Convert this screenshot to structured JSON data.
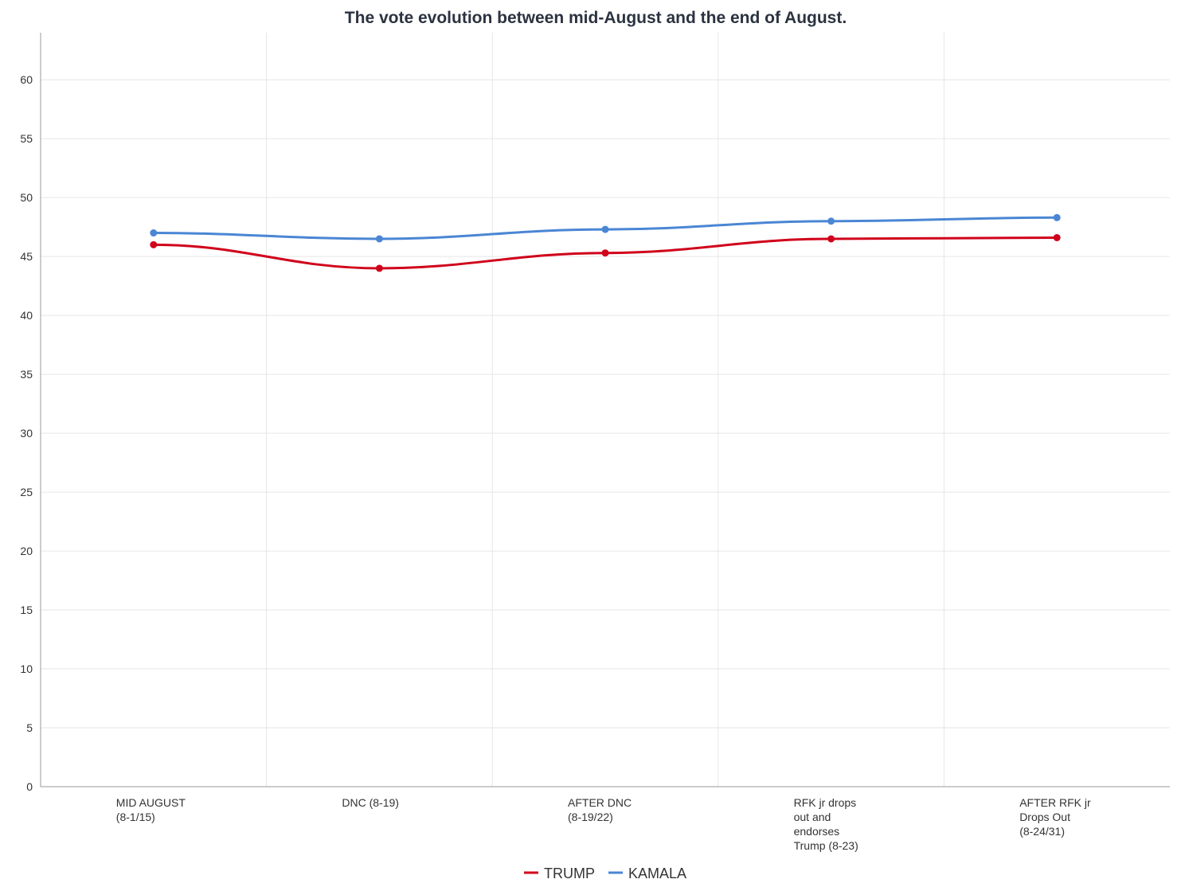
{
  "chart_data": {
    "type": "line",
    "title": "The vote evolution between mid-August and the end of August.",
    "xlabel": "",
    "ylabel": "",
    "ylim": [
      0,
      64
    ],
    "yticks": [
      0,
      5,
      10,
      15,
      20,
      25,
      30,
      35,
      40,
      45,
      50,
      55,
      60
    ],
    "grid": true,
    "legend_position": "bottom-center",
    "categories": [
      [
        "MID AUGUST",
        "(8-1/15)"
      ],
      [
        "DNC (8-19)"
      ],
      [
        "AFTER DNC",
        "(8-19/22)"
      ],
      [
        "RFK jr drops",
        "out and",
        "endorses",
        "Trump (8-23)"
      ],
      [
        "AFTER RFK jr",
        "Drops Out",
        "(8-24/31)"
      ]
    ],
    "series": [
      {
        "name": "TRUMP",
        "color": "#d0021b",
        "values": [
          46.0,
          44.0,
          45.3,
          46.5,
          46.6
        ]
      },
      {
        "name": "KAMALA",
        "color": "#4a86d4",
        "values": [
          47.0,
          46.5,
          47.3,
          48.0,
          48.3
        ]
      }
    ]
  }
}
